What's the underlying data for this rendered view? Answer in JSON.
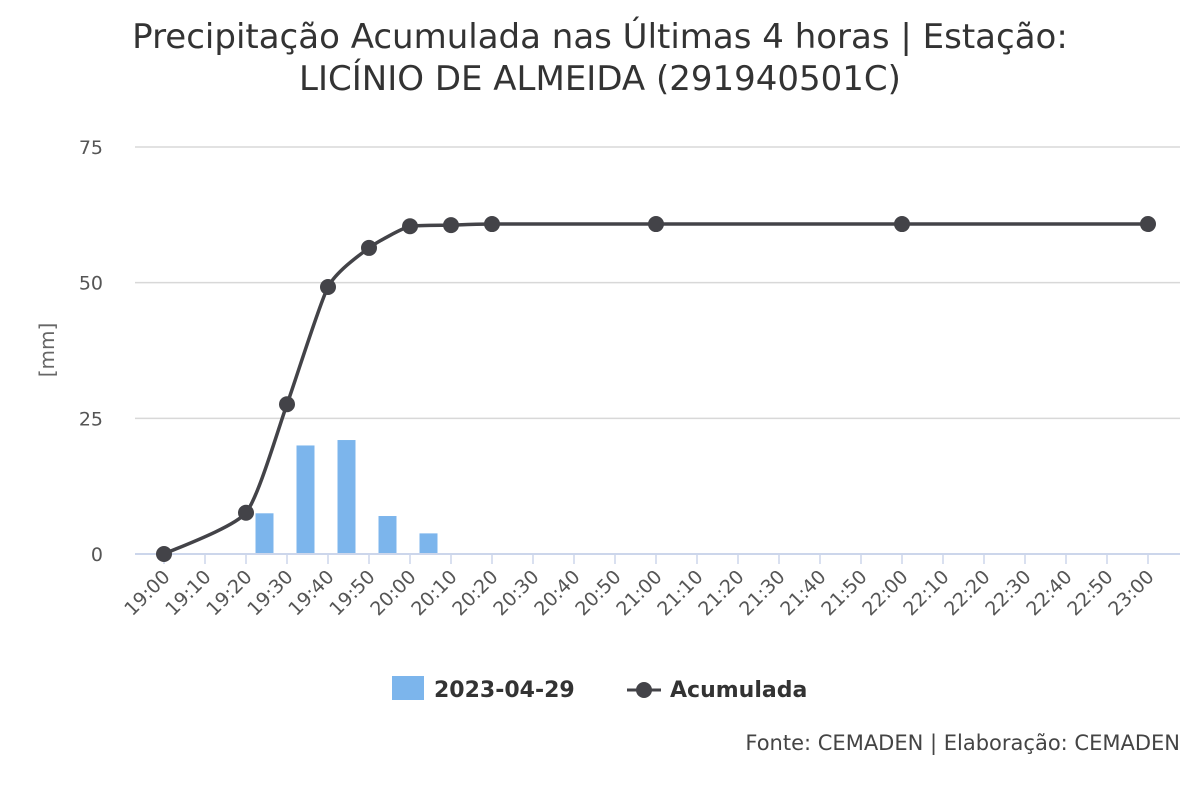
{
  "chart_data": {
    "type": "bar",
    "title_lines": [
      "Precipitação Acumulada nas Últimas 4 horas | Estação:",
      "LICÍNIO DE ALMEIDA (291940501C)"
    ],
    "xlabel": "",
    "ylabel": "[mm]",
    "ylim": [
      0,
      75
    ],
    "yticks": [
      0,
      25,
      50,
      75
    ],
    "categories": [
      "19:00",
      "19:10",
      "19:20",
      "19:30",
      "19:40",
      "19:50",
      "20:00",
      "20:10",
      "20:20",
      "20:30",
      "20:40",
      "20:50",
      "21:00",
      "21:10",
      "21:20",
      "21:30",
      "21:40",
      "21:50",
      "22:00",
      "22:10",
      "22:20",
      "22:30",
      "22:40",
      "22:50",
      "23:00"
    ],
    "grid": true,
    "legend_position": "bottom-center",
    "series": [
      {
        "name": "2023-04-29",
        "type": "bar",
        "color": "#7cb5ec",
        "values": [
          0,
          0,
          7.5,
          20,
          21,
          7,
          3.8,
          0,
          0,
          0,
          0,
          0,
          0,
          0,
          0,
          0,
          0,
          0,
          0,
          0,
          0,
          0,
          0,
          0,
          0
        ]
      },
      {
        "name": "Acumulada",
        "type": "line",
        "color": "#434348",
        "x": [
          "19:00",
          "19:20",
          "19:30",
          "19:40",
          "19:50",
          "20:00",
          "20:10",
          "20:20",
          "21:00",
          "22:00",
          "23:00"
        ],
        "values": [
          0,
          7.6,
          27.6,
          49.2,
          56.4,
          60.4,
          60.6,
          60.8,
          60.8,
          60.8,
          60.8
        ]
      }
    ],
    "credits": "Fonte: CEMADEN | Elaboração: CEMADEN"
  }
}
